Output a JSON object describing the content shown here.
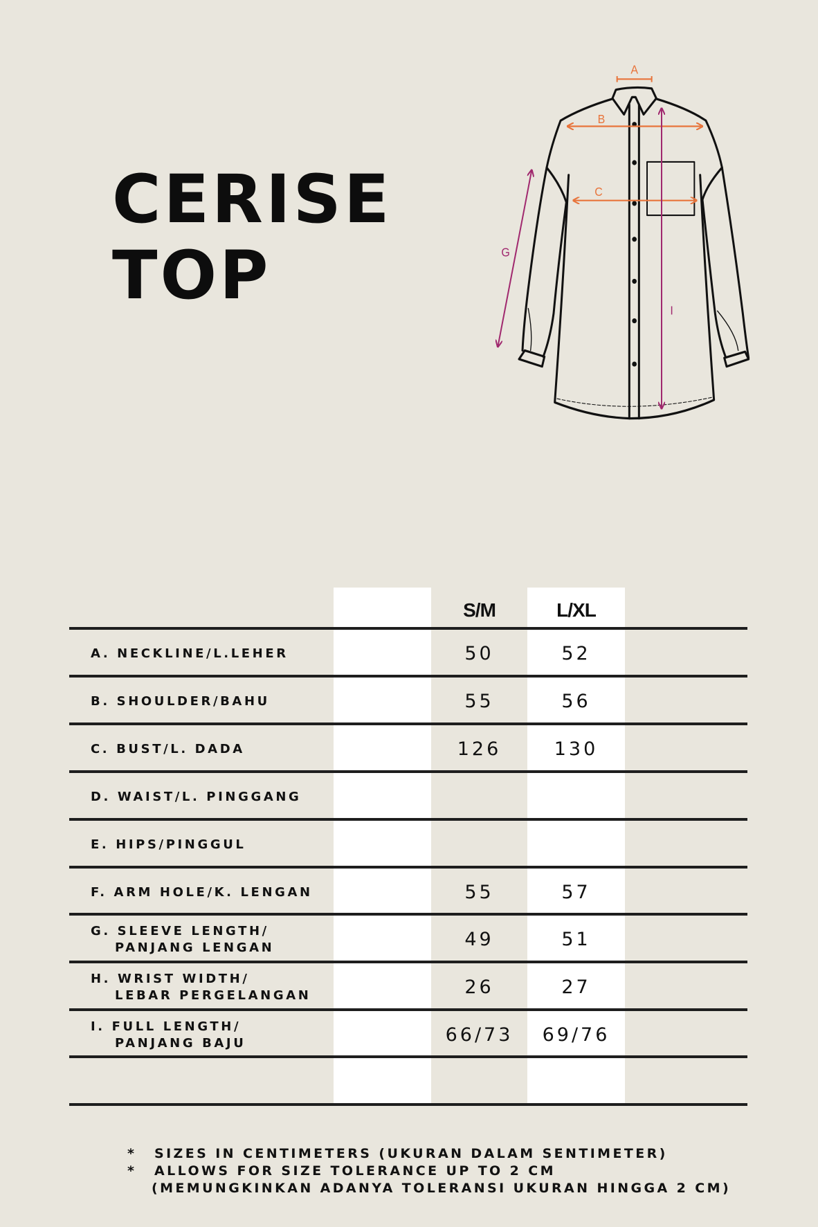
{
  "title": {
    "line1": "CERISE",
    "line2": "TOP"
  },
  "diagram": {
    "labels": {
      "A": "A",
      "B": "B",
      "C": "C",
      "G": "G",
      "I": "I"
    },
    "colors": {
      "horizontal_measure": "#e8743b",
      "vertical_measure": "#a0286e",
      "outline": "#111111"
    }
  },
  "table": {
    "headers": [
      "S/M",
      "L/XL"
    ],
    "rows": [
      {
        "label": [
          "A. NECKLINE/L.LEHER"
        ],
        "sm": "50",
        "lxl": "52"
      },
      {
        "label": [
          "B. SHOULDER/BAHU"
        ],
        "sm": "55",
        "lxl": "56"
      },
      {
        "label": [
          "C. BUST/L. DADA"
        ],
        "sm": "126",
        "lxl": "130"
      },
      {
        "label": [
          "D. WAIST/L. PINGGANG"
        ],
        "sm": "",
        "lxl": ""
      },
      {
        "label": [
          "E. HIPS/PINGGUL"
        ],
        "sm": "",
        "lxl": ""
      },
      {
        "label": [
          "F. ARM HOLE/K. LENGAN"
        ],
        "sm": "55",
        "lxl": "57"
      },
      {
        "label": [
          "G. SLEEVE LENGTH/",
          "PANJANG LENGAN"
        ],
        "sm": "49",
        "lxl": "51"
      },
      {
        "label": [
          "H. WRIST WIDTH/",
          "LEBAR PERGELANGAN"
        ],
        "sm": "26",
        "lxl": "27"
      },
      {
        "label": [
          "I. FULL LENGTH/",
          "PANJANG BAJU"
        ],
        "sm": "66/73",
        "lxl": "69/76"
      },
      {
        "label": [
          ""
        ],
        "sm": "",
        "lxl": ""
      }
    ]
  },
  "notes": [
    {
      "bullet": "*",
      "text": "SIZES IN CENTIMETERS  (UKURAN DALAM SENTIMETER)"
    },
    {
      "bullet": "*",
      "text": "ALLOWS FOR SIZE TOLERANCE UP TO 2 CM"
    },
    {
      "bullet": "",
      "text": "(MEMUNGKINKAN ADANYA TOLERANSI UKURAN HINGGA 2 CM)"
    }
  ]
}
